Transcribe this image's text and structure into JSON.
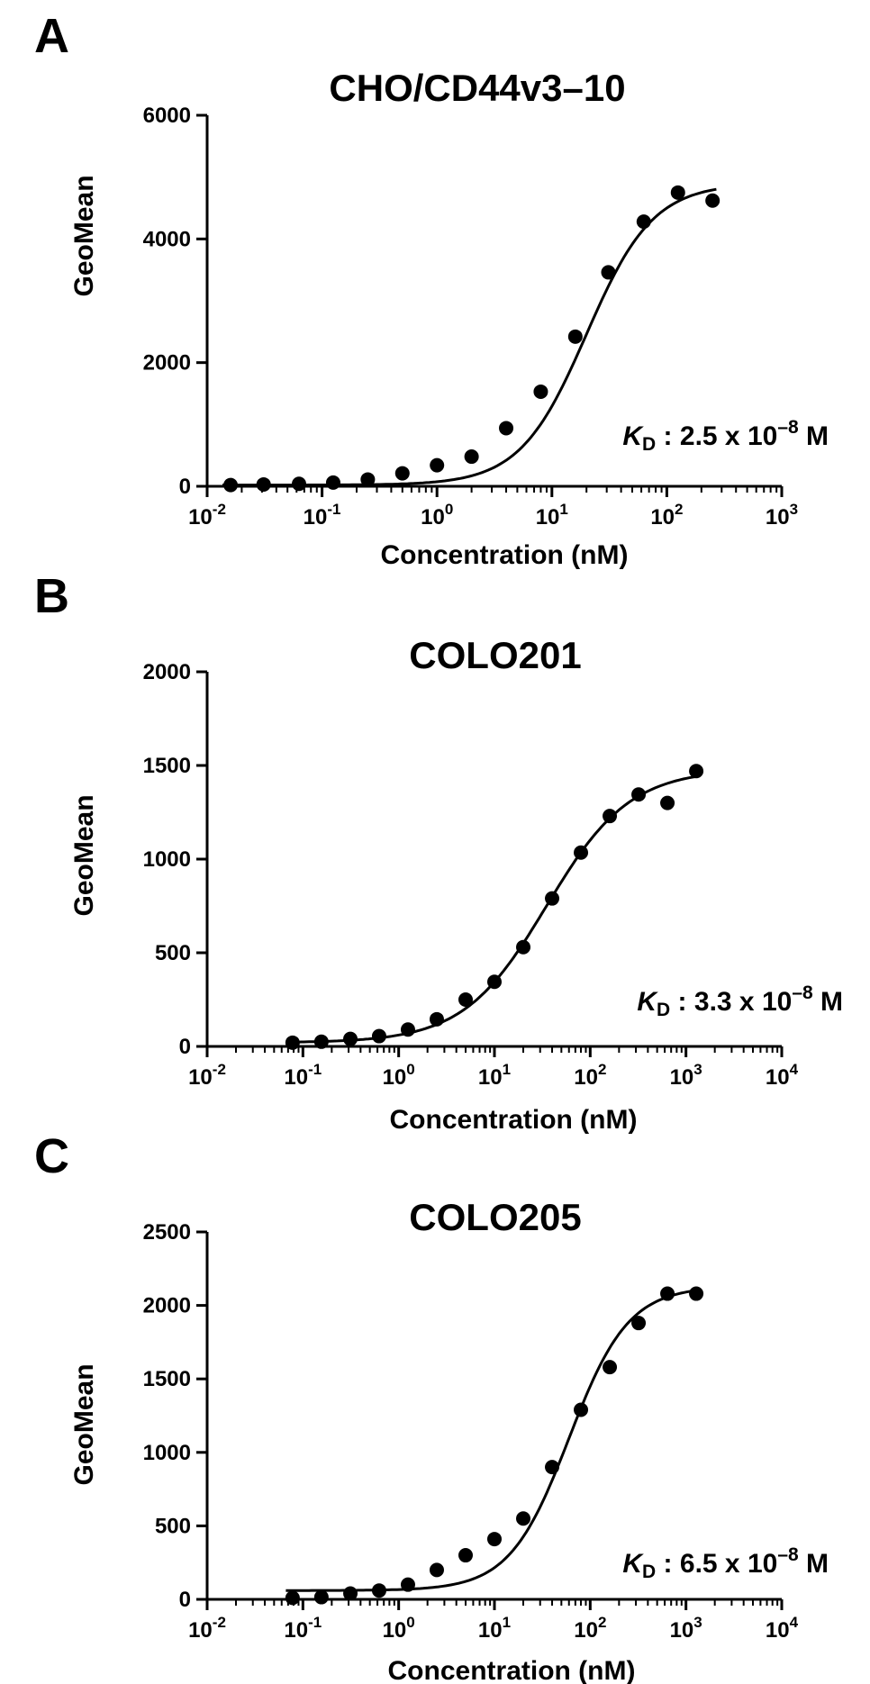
{
  "chart_data": [
    {
      "type": "scatter",
      "panel": "A",
      "title": "CHO/CD44v3–10",
      "xlabel": "Concentration (nM)",
      "ylabel": "GeoMean",
      "xscale": "log",
      "xlim": [
        0.01,
        1000
      ],
      "ylim": [
        0,
        6000
      ],
      "yticks": [
        "0",
        "2000",
        "4000",
        "6000"
      ],
      "xticks": [
        {
          "base": "10",
          "exp": "-2"
        },
        {
          "base": "10",
          "exp": "-1"
        },
        {
          "base": "10",
          "exp": "0"
        },
        {
          "base": "10",
          "exp": "1"
        },
        {
          "base": "10",
          "exp": "2"
        },
        {
          "base": "10",
          "exp": "3"
        }
      ],
      "x": [
        0.016,
        0.031,
        0.063,
        0.125,
        0.25,
        0.5,
        1,
        2,
        4,
        8,
        16,
        31,
        63,
        125,
        250
      ],
      "y": [
        20,
        30,
        40,
        60,
        110,
        210,
        340,
        480,
        940,
        1530,
        2420,
        3460,
        4280,
        4750,
        4620
      ],
      "kd": {
        "prefix": "K",
        "sub": "D",
        "text": " : 2.5 x 10",
        "exp": "–8",
        "unit": " M"
      },
      "fit": {
        "bottom": 20,
        "top": 4900,
        "ec50": 20,
        "hill": 1.5
      }
    },
    {
      "type": "scatter",
      "panel": "B",
      "title": "COLO201",
      "xlabel": "Concentration (nM)",
      "ylabel": "GeoMean",
      "xscale": "log",
      "xlim": [
        0.01,
        10000
      ],
      "ylim": [
        0,
        2000
      ],
      "yticks": [
        "0",
        "500",
        "1000",
        "1500",
        "2000"
      ],
      "xticks": [
        {
          "base": "10",
          "exp": "-2"
        },
        {
          "base": "10",
          "exp": "-1"
        },
        {
          "base": "10",
          "exp": "0"
        },
        {
          "base": "10",
          "exp": "1"
        },
        {
          "base": "10",
          "exp": "2"
        },
        {
          "base": "10",
          "exp": "3"
        },
        {
          "base": "10",
          "exp": "4"
        }
      ],
      "x": [
        0.078,
        0.156,
        0.313,
        0.625,
        1.25,
        2.5,
        5,
        10,
        20,
        40,
        80,
        160,
        320,
        640,
        1280
      ],
      "y": [
        20,
        25,
        40,
        55,
        90,
        145,
        250,
        345,
        530,
        790,
        1035,
        1230,
        1345,
        1300,
        1470
      ],
      "kd": {
        "prefix": "K",
        "sub": "D",
        "text": " : 3.3 x 10",
        "exp": "–8",
        "unit": " M"
      },
      "fit": {
        "bottom": 20,
        "top": 1480,
        "ec50": 35,
        "hill": 1.0
      }
    },
    {
      "type": "scatter",
      "panel": "C",
      "title": "COLO205",
      "xlabel": "Concentration (nM)",
      "ylabel": "GeoMean",
      "xscale": "log",
      "xlim": [
        0.01,
        10000
      ],
      "ylim": [
        0,
        2500
      ],
      "yticks": [
        "0",
        "500",
        "1000",
        "1500",
        "2000",
        "2500"
      ],
      "xticks": [
        {
          "base": "10",
          "exp": "-2"
        },
        {
          "base": "10",
          "exp": "-1"
        },
        {
          "base": "10",
          "exp": "0"
        },
        {
          "base": "10",
          "exp": "1"
        },
        {
          "base": "10",
          "exp": "2"
        },
        {
          "base": "10",
          "exp": "3"
        },
        {
          "base": "10",
          "exp": "4"
        }
      ],
      "x": [
        0.078,
        0.156,
        0.313,
        0.625,
        1.25,
        2.5,
        5,
        10,
        20,
        40,
        80,
        160,
        320,
        640,
        1280
      ],
      "y": [
        10,
        15,
        40,
        60,
        100,
        200,
        300,
        410,
        550,
        900,
        1290,
        1580,
        1880,
        2080,
        2080
      ],
      "kd": {
        "prefix": "K",
        "sub": "D",
        "text": " : 6.5 x 10",
        "exp": "–8",
        "unit": " M"
      },
      "fit": {
        "bottom": 60,
        "top": 2130,
        "ec50": 60,
        "hill": 1.4
      }
    }
  ]
}
